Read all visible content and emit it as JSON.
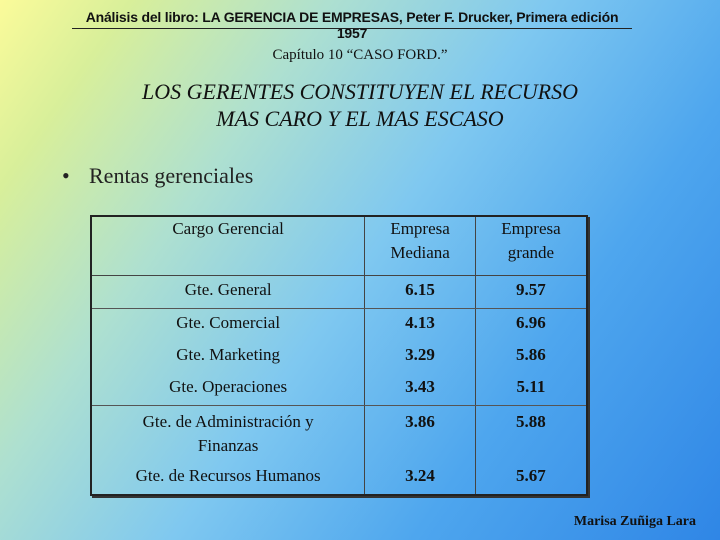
{
  "header": {
    "source": "Análisis del libro: LA GERENCIA DE EMPRESAS, Peter F. Drucker, Primera edición 1957",
    "chapter": "Capítulo 10 “CASO FORD.”"
  },
  "title": {
    "line1": "LOS GERENTES CONSTITUYEN EL RECURSO",
    "line2": "MAS CARO Y EL MAS ESCASO"
  },
  "bullet": {
    "symbol": "•",
    "text": "Rentas gerenciales"
  },
  "table": {
    "headers": {
      "cargo": "Cargo Gerencial",
      "mediana_line1": "Empresa",
      "mediana_line2": "Mediana",
      "grande_line1": "Empresa",
      "grande_line2": "grande"
    },
    "rows": [
      {
        "cargo": "Gte. General",
        "mediana": "6.15",
        "grande": "9.57"
      },
      {
        "cargo": "Gte. Comercial",
        "mediana": "4.13",
        "grande": "6.96"
      },
      {
        "cargo": "Gte. Marketing",
        "mediana": "3.29",
        "grande": "5.86"
      },
      {
        "cargo": "Gte. Operaciones",
        "mediana": "3.43",
        "grande": "5.11"
      },
      {
        "cargo_line1": "Gte. de Administración y",
        "cargo_line2": "Finanzas",
        "mediana": "3.86",
        "grande": "5.88"
      },
      {
        "cargo": "Gte. de Recursos Humanos",
        "mediana": "3.24",
        "grande": "5.67"
      }
    ]
  },
  "footer": {
    "author": "Marisa Zuñiga Lara"
  }
}
